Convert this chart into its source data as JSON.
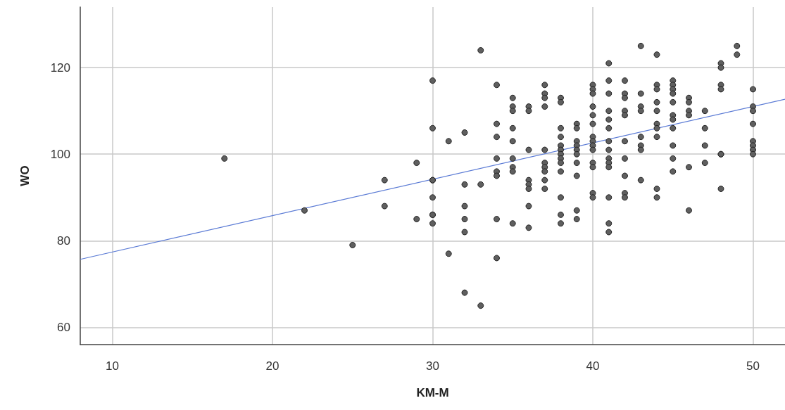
{
  "chart_data": {
    "type": "scatter",
    "xlabel": "KM-M",
    "ylabel": "WO",
    "xlim": [
      8,
      52
    ],
    "xticks": [
      10,
      20,
      30,
      40,
      50
    ],
    "ylim": [
      56,
      134
    ],
    "yticks": [
      60,
      80,
      100,
      120
    ],
    "grid": true,
    "marker": "circle",
    "series": [
      {
        "color": "#5f5f5f",
        "x": [
          17,
          22,
          25,
          27,
          27,
          29,
          29,
          30,
          30,
          30,
          30,
          30,
          30,
          30,
          30,
          31,
          31,
          32,
          32,
          32,
          32,
          32,
          32,
          33,
          33,
          33,
          34,
          34,
          34,
          34,
          34,
          34,
          34,
          34,
          35,
          35,
          35,
          35,
          35,
          35,
          35,
          35,
          35,
          36,
          36,
          36,
          36,
          36,
          36,
          36,
          36,
          37,
          37,
          37,
          37,
          37,
          37,
          37,
          37,
          37,
          37,
          38,
          38,
          38,
          38,
          38,
          38,
          38,
          38,
          38,
          38,
          38,
          38,
          38,
          39,
          39,
          39,
          39,
          39,
          39,
          39,
          39,
          39,
          39,
          40,
          40,
          40,
          40,
          40,
          40,
          40,
          40,
          40,
          40,
          40,
          40,
          40,
          40,
          41,
          41,
          41,
          41,
          41,
          41,
          41,
          41,
          41,
          41,
          41,
          41,
          41,
          41,
          42,
          42,
          42,
          42,
          42,
          42,
          42,
          42,
          42,
          42,
          43,
          43,
          43,
          43,
          43,
          43,
          43,
          43,
          44,
          44,
          44,
          44,
          44,
          44,
          44,
          44,
          44,
          44,
          45,
          45,
          45,
          45,
          45,
          45,
          45,
          45,
          45,
          45,
          45,
          46,
          46,
          46,
          46,
          46,
          46,
          47,
          47,
          47,
          47,
          48,
          48,
          48,
          48,
          48,
          48,
          48,
          49,
          49,
          50,
          50,
          50,
          50,
          50,
          50,
          50,
          50
        ],
        "values": [
          99,
          87,
          79,
          94,
          88,
          98,
          85,
          117,
          106,
          94,
          94,
          90,
          86,
          86,
          84,
          103,
          77,
          105,
          93,
          88,
          85,
          82,
          68,
          124,
          93,
          65,
          116,
          107,
          104,
          99,
          96,
          95,
          85,
          76,
          113,
          111,
          110,
          106,
          103,
          99,
          97,
          96,
          84,
          111,
          110,
          101,
          94,
          93,
          92,
          88,
          83,
          116,
          114,
          113,
          111,
          101,
          98,
          97,
          96,
          94,
          92,
          113,
          112,
          106,
          104,
          102,
          101,
          100,
          99,
          98,
          96,
          90,
          86,
          84,
          107,
          106,
          103,
          102,
          101,
          100,
          98,
          95,
          87,
          85,
          116,
          115,
          114,
          111,
          109,
          107,
          104,
          103,
          102,
          101,
          98,
          97,
          91,
          90,
          121,
          117,
          114,
          110,
          108,
          106,
          103,
          101,
          99,
          98,
          97,
          90,
          84,
          82,
          117,
          114,
          113,
          110,
          109,
          103,
          99,
          95,
          91,
          90,
          125,
          114,
          111,
          110,
          104,
          102,
          101,
          94,
          123,
          116,
          115,
          112,
          110,
          107,
          106,
          104,
          92,
          90,
          117,
          116,
          115,
          114,
          112,
          109,
          108,
          106,
          102,
          99,
          96,
          113,
          112,
          110,
          109,
          97,
          87,
          110,
          106,
          102,
          98,
          121,
          120,
          116,
          115,
          100,
          100,
          92,
          125,
          123,
          115,
          111,
          110,
          107,
          103,
          102,
          101,
          100
        ]
      },
      {
        "type": "line",
        "color": "#5b7bd5",
        "marker": "none",
        "x": [
          8,
          52
        ],
        "values": [
          75.7,
          112.7
        ]
      }
    ]
  }
}
